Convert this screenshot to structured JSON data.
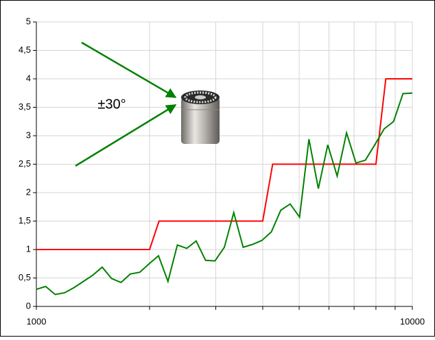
{
  "chart_data": {
    "type": "line",
    "annotation": "±30°",
    "xscale": "log",
    "grid": true,
    "xlim": [
      1000,
      10000
    ],
    "xticks": [
      1000,
      {
        "value": 2000,
        "label": null
      },
      {
        "value": 3000,
        "label": null
      },
      {
        "value": 4000,
        "label": null
      },
      {
        "value": 5000,
        "label": null
      },
      {
        "value": 6000,
        "label": null
      },
      {
        "value": 7000,
        "label": null
      },
      {
        "value": 8000,
        "label": null
      },
      {
        "value": 9000,
        "label": null
      },
      10000
    ],
    "ylim": [
      0,
      5
    ],
    "yticks": [
      0,
      {
        "value": 0.5,
        "label": "0,5"
      },
      1,
      {
        "value": 1.5,
        "label": "1,5"
      },
      2,
      {
        "value": 2.5,
        "label": "2,5"
      },
      3,
      {
        "value": 3.5,
        "label": "3,5"
      },
      4,
      {
        "value": 4.5,
        "label": "4,5"
      },
      5
    ],
    "series": [
      {
        "color": "#ff0000",
        "x": [
          1000,
          2000,
          2120,
          4000,
          4250,
          8000,
          8500,
          10000
        ],
        "values": [
          1,
          1,
          1.5,
          1.5,
          2.5,
          2.5,
          4,
          4
        ]
      },
      {
        "color": "#008000",
        "x": [
          1000,
          1059,
          1122,
          1189,
          1259,
          1334,
          1413,
          1496,
          1585,
          1679,
          1778,
          1884,
          1995,
          2113,
          2239,
          2371,
          2512,
          2661,
          2818,
          2985,
          3162,
          3350,
          3548,
          3758,
          3981,
          4217,
          4467,
          4732,
          5012,
          5309,
          5623,
          5957,
          6310,
          6683,
          7079,
          7499,
          7943,
          8414,
          8913,
          9441,
          10000
        ],
        "values": [
          0.3,
          0.35,
          0.21,
          0.24,
          0.33,
          0.44,
          0.55,
          0.69,
          0.49,
          0.42,
          0.57,
          0.6,
          0.75,
          0.89,
          0.44,
          1.08,
          1.02,
          1.15,
          0.81,
          0.8,
          1.04,
          1.65,
          1.04,
          1.09,
          1.16,
          1.31,
          1.69,
          1.8,
          1.57,
          2.94,
          2.07,
          2.84,
          2.29,
          3.05,
          2.52,
          2.57,
          2.84,
          3.12,
          3.25,
          3.74,
          3.75
        ]
      }
    ]
  }
}
